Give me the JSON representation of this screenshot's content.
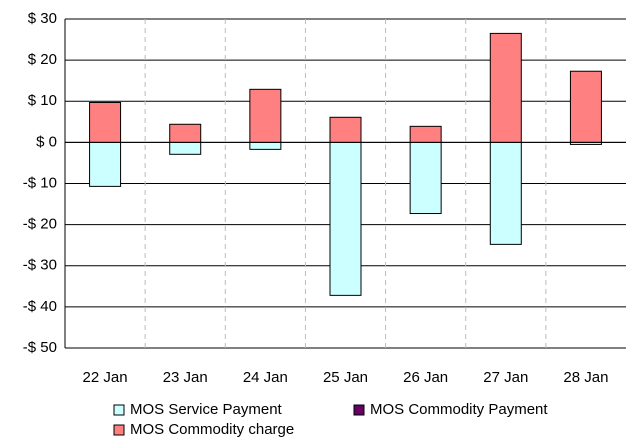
{
  "chart_data": {
    "type": "stacked-bar",
    "categories": [
      "22 Jan",
      "23 Jan",
      "24 Jan",
      "25 Jan",
      "26 Jan",
      "27 Jan",
      "28 Jan"
    ],
    "series": [
      {
        "name": "MOS Service Payment",
        "color": "#ccffff",
        "values": [
          -10.7,
          -2.9,
          -1.7,
          -37.2,
          -17.3,
          -24.8,
          -0.5
        ]
      },
      {
        "name": "MOS Commodity Payment",
        "color": "#660066",
        "values": [
          0,
          0,
          0,
          0,
          0,
          0,
          0
        ]
      },
      {
        "name": "MOS Commodity charge",
        "color": "#ff8080",
        "values": [
          9.7,
          4.4,
          12.9,
          6.1,
          3.9,
          26.5,
          17.3
        ]
      }
    ],
    "ylim": [
      -50,
      30
    ],
    "yticks": [
      {
        "value": -50,
        "label": "-$ 50"
      },
      {
        "value": -40,
        "label": "-$ 40"
      },
      {
        "value": -30,
        "label": "-$ 30"
      },
      {
        "value": -20,
        "label": "-$ 20"
      },
      {
        "value": -10,
        "label": "-$ 10"
      },
      {
        "value": 0,
        "label": "$ 0"
      },
      {
        "value": 10,
        "label": "$ 10"
      },
      {
        "value": 20,
        "label": "$ 20"
      },
      {
        "value": 30,
        "label": "$ 30"
      }
    ],
    "grid": true,
    "legend": "bottom"
  }
}
